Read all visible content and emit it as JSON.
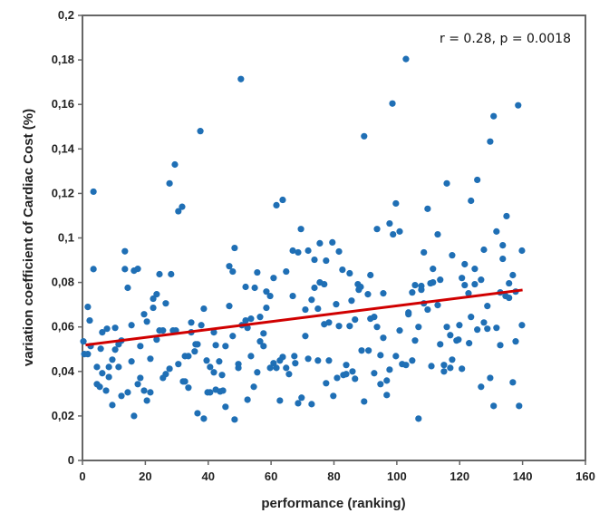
{
  "chart_data": {
    "type": "scatter",
    "title": "",
    "xlabel": "performance  (ranking)",
    "ylabel": "variation coefficient of Cardiac Cost (%)",
    "xlim": [
      0,
      160
    ],
    "ylim": [
      0,
      0.2
    ],
    "x_ticks": [
      0,
      20,
      40,
      60,
      80,
      100,
      120,
      140,
      160
    ],
    "x_tick_labels": [
      "0",
      "20",
      "40",
      "60",
      "80",
      "100",
      "120",
      "140",
      "160"
    ],
    "y_ticks": [
      0,
      0.02,
      0.04,
      0.06,
      0.08,
      0.1,
      0.12,
      0.14,
      0.16,
      0.18,
      0.2
    ],
    "y_tick_labels": [
      "0",
      "0,02",
      "0,04",
      "0,06",
      "0,08",
      "0,1",
      "0,12",
      "0,14",
      "0,16",
      "0,18",
      "0,2"
    ],
    "grid": false,
    "annotation": "r = 0.28, p = 0.0018",
    "colors": {
      "points": "#1f6fb5",
      "trendline": "#d00000",
      "axes": "#666666"
    },
    "trendline": {
      "x": [
        1,
        140
      ],
      "y": [
        0.0519,
        0.0766
      ]
    },
    "points": [
      [
        3.5,
        0.1208
      ],
      [
        29.4,
        0.133
      ],
      [
        27.7,
        0.1245
      ],
      [
        30.5,
        0.112
      ],
      [
        31.7,
        0.114
      ],
      [
        3.5,
        0.086
      ],
      [
        13.5,
        0.094
      ],
      [
        13.5,
        0.086
      ],
      [
        14.4,
        0.0776
      ],
      [
        16.4,
        0.0853
      ],
      [
        17.6,
        0.0861
      ],
      [
        24.5,
        0.0837
      ],
      [
        28.2,
        0.0837
      ],
      [
        23.6,
        0.0747
      ],
      [
        22.5,
        0.0727
      ],
      [
        22.5,
        0.0686
      ],
      [
        26.5,
        0.0706
      ],
      [
        19.6,
        0.0657
      ],
      [
        20.5,
        0.0624
      ],
      [
        1.7,
        0.069
      ],
      [
        2.3,
        0.0629
      ],
      [
        0.3,
        0.0535
      ],
      [
        2.6,
        0.0514
      ],
      [
        0.6,
        0.0478
      ],
      [
        1.7,
        0.0478
      ],
      [
        6.3,
        0.0576
      ],
      [
        7.8,
        0.0592
      ],
      [
        10.4,
        0.0596
      ],
      [
        15.6,
        0.0608
      ],
      [
        12.4,
        0.0539
      ],
      [
        11.5,
        0.0522
      ],
      [
        5.8,
        0.0502
      ],
      [
        10.4,
        0.0498
      ],
      [
        18.4,
        0.0514
      ],
      [
        23.6,
        0.0543
      ],
      [
        24.5,
        0.0584
      ],
      [
        25.6,
        0.0584
      ],
      [
        28.8,
        0.0584
      ],
      [
        29.7,
        0.0584
      ],
      [
        34.6,
        0.062
      ],
      [
        34.6,
        0.0576
      ],
      [
        37.8,
        0.0608
      ],
      [
        38.6,
        0.0682
      ],
      [
        36,
        0.0522
      ],
      [
        36.6,
        0.0522
      ],
      [
        35.7,
        0.049
      ],
      [
        32.6,
        0.0469
      ],
      [
        33.7,
        0.0469
      ],
      [
        30.5,
        0.0433
      ],
      [
        27.7,
        0.0412
      ],
      [
        26.5,
        0.0388
      ],
      [
        25.6,
        0.0371
      ],
      [
        21.6,
        0.0457
      ],
      [
        15.6,
        0.0445
      ],
      [
        9.5,
        0.0453
      ],
      [
        8.4,
        0.042
      ],
      [
        11.5,
        0.042
      ],
      [
        4.6,
        0.042
      ],
      [
        6.3,
        0.0392
      ],
      [
        8.4,
        0.0375
      ],
      [
        4.6,
        0.0343
      ],
      [
        5.5,
        0.0331
      ],
      [
        7.5,
        0.0314
      ],
      [
        9.5,
        0.0249
      ],
      [
        12.4,
        0.029
      ],
      [
        14.4,
        0.0306
      ],
      [
        16.4,
        0.02
      ],
      [
        18.4,
        0.0371
      ],
      [
        17.6,
        0.0343
      ],
      [
        19.6,
        0.0314
      ],
      [
        21.6,
        0.0306
      ],
      [
        20.5,
        0.0269
      ],
      [
        32,
        0.0355
      ],
      [
        32.6,
        0.0355
      ],
      [
        33.7,
        0.0327
      ],
      [
        36.6,
        0.0212
      ],
      [
        38.6,
        0.0188
      ],
      [
        39.5,
        0.0449
      ],
      [
        40.6,
        0.042
      ],
      [
        41.8,
        0.0396
      ],
      [
        42.4,
        0.0518
      ],
      [
        45.5,
        0.0514
      ],
      [
        41.8,
        0.0576
      ],
      [
        43.5,
        0.0445
      ],
      [
        44.4,
        0.0384
      ],
      [
        39.8,
        0.0306
      ],
      [
        40.6,
        0.0306
      ],
      [
        42.4,
        0.0318
      ],
      [
        43.8,
        0.031
      ],
      [
        44.7,
        0.0314
      ],
      [
        45.5,
        0.0241
      ],
      [
        48.4,
        0.0184
      ],
      [
        46.7,
        0.0694
      ],
      [
        46.7,
        0.0873
      ],
      [
        47.8,
        0.0849
      ],
      [
        48.4,
        0.0955
      ],
      [
        47.8,
        0.0559
      ],
      [
        49.6,
        0.0433
      ],
      [
        49.6,
        0.0416
      ],
      [
        50.7,
        0.0608
      ],
      [
        51.9,
        0.0629
      ],
      [
        52.5,
        0.0596
      ],
      [
        51.9,
        0.078
      ],
      [
        54.8,
        0.0776
      ],
      [
        53.6,
        0.0637
      ],
      [
        55.6,
        0.0845
      ],
      [
        53.6,
        0.0469
      ],
      [
        55.6,
        0.0396
      ],
      [
        54.5,
        0.0331
      ],
      [
        52.5,
        0.0273
      ],
      [
        56.5,
        0.0645
      ],
      [
        58.5,
        0.0759
      ],
      [
        59.7,
        0.0739
      ],
      [
        58.5,
        0.0686
      ],
      [
        57.6,
        0.0571
      ],
      [
        56.5,
        0.0535
      ],
      [
        57.6,
        0.0514
      ],
      [
        60.8,
        0.082
      ],
      [
        61.7,
        0.1147
      ],
      [
        63.7,
        0.1171
      ],
      [
        59.7,
        0.0416
      ],
      [
        60.8,
        0.0437
      ],
      [
        61.7,
        0.0416
      ],
      [
        62.8,
        0.0449
      ],
      [
        63.7,
        0.0465
      ],
      [
        64.8,
        0.0416
      ],
      [
        65.7,
        0.0388
      ],
      [
        62.8,
        0.0269
      ],
      [
        64.8,
        0.0849
      ],
      [
        66.9,
        0.0739
      ],
      [
        69.5,
        0.104
      ],
      [
        66.9,
        0.0943
      ],
      [
        68.6,
        0.0935
      ],
      [
        71.8,
        0.0943
      ],
      [
        75.5,
        0.0976
      ],
      [
        73.8,
        0.0902
      ],
      [
        77.5,
        0.0898
      ],
      [
        70.9,
        0.0678
      ],
      [
        70.9,
        0.0559
      ],
      [
        72.9,
        0.0722
      ],
      [
        74.9,
        0.0682
      ],
      [
        73.8,
        0.0776
      ],
      [
        75.5,
        0.08
      ],
      [
        76.9,
        0.0792
      ],
      [
        67.4,
        0.0469
      ],
      [
        67.7,
        0.0437
      ],
      [
        71.8,
        0.0457
      ],
      [
        74.9,
        0.0449
      ],
      [
        68.6,
        0.0257
      ],
      [
        69.7,
        0.0282
      ],
      [
        72.9,
        0.0253
      ],
      [
        77.5,
        0.0347
      ],
      [
        78.4,
        0.0449
      ],
      [
        76.9,
        0.0612
      ],
      [
        78.4,
        0.062
      ],
      [
        89.6,
        0.1457
      ],
      [
        129.7,
        0.1433
      ],
      [
        115.9,
        0.1245
      ],
      [
        125.6,
        0.1261
      ],
      [
        123.6,
        0.1167
      ],
      [
        99.7,
        0.1155
      ],
      [
        109.8,
        0.1131
      ],
      [
        134.9,
        0.1098
      ],
      [
        93.7,
        0.104
      ],
      [
        97.7,
        0.1065
      ],
      [
        98.8,
        0.1016
      ],
      [
        100.9,
        0.1029
      ],
      [
        113,
        0.1016
      ],
      [
        131.7,
        0.1029
      ],
      [
        79.5,
        0.098
      ],
      [
        81.6,
        0.0939
      ],
      [
        82.7,
        0.0857
      ],
      [
        85,
        0.0841
      ],
      [
        91.6,
        0.0833
      ],
      [
        87.6,
        0.0792
      ],
      [
        88.5,
        0.078
      ],
      [
        87.9,
        0.0767
      ],
      [
        90.8,
        0.0747
      ],
      [
        95.7,
        0.0751
      ],
      [
        85.6,
        0.0718
      ],
      [
        80.7,
        0.0702
      ],
      [
        108.6,
        0.0935
      ],
      [
        117.6,
        0.0922
      ],
      [
        127.7,
        0.0947
      ],
      [
        133.7,
        0.0967
      ],
      [
        133.7,
        0.0906
      ],
      [
        139.8,
        0.0943
      ],
      [
        111.5,
        0.0861
      ],
      [
        121.6,
        0.0882
      ],
      [
        124.8,
        0.0861
      ],
      [
        120.7,
        0.082
      ],
      [
        121.6,
        0.0788
      ],
      [
        124.8,
        0.0792
      ],
      [
        126.8,
        0.0812
      ],
      [
        136.9,
        0.0833
      ],
      [
        135.7,
        0.0796
      ],
      [
        105.8,
        0.0788
      ],
      [
        107.8,
        0.0784
      ],
      [
        107.8,
        0.0767
      ],
      [
        104.9,
        0.0755
      ],
      [
        110.7,
        0.0796
      ],
      [
        111.5,
        0.08
      ],
      [
        113.8,
        0.0812
      ],
      [
        122.8,
        0.0751
      ],
      [
        132.9,
        0.0755
      ],
      [
        134.6,
        0.0739
      ],
      [
        135.7,
        0.0731
      ],
      [
        137.8,
        0.0759
      ],
      [
        108.6,
        0.0706
      ],
      [
        109.8,
        0.0678
      ],
      [
        113,
        0.0698
      ],
      [
        103.7,
        0.0665
      ],
      [
        103.7,
        0.0657
      ],
      [
        128.8,
        0.0694
      ],
      [
        86.7,
        0.0633
      ],
      [
        91.6,
        0.0637
      ],
      [
        92.8,
        0.0645
      ],
      [
        81.6,
        0.0604
      ],
      [
        85,
        0.0604
      ],
      [
        93.7,
        0.06
      ],
      [
        100.9,
        0.0584
      ],
      [
        106.9,
        0.06
      ],
      [
        115.9,
        0.06
      ],
      [
        119.9,
        0.0608
      ],
      [
        123.6,
        0.0645
      ],
      [
        127.7,
        0.062
      ],
      [
        125.6,
        0.0588
      ],
      [
        128.8,
        0.0592
      ],
      [
        131.7,
        0.0596
      ],
      [
        139.8,
        0.0608
      ],
      [
        95.7,
        0.0551
      ],
      [
        105.8,
        0.0539
      ],
      [
        117,
        0.0563
      ],
      [
        119,
        0.0539
      ],
      [
        119.6,
        0.0543
      ],
      [
        123,
        0.0527
      ],
      [
        113.8,
        0.0522
      ],
      [
        132.9,
        0.0518
      ],
      [
        137.8,
        0.0535
      ],
      [
        88.8,
        0.0494
      ],
      [
        91,
        0.0494
      ],
      [
        94.8,
        0.0473
      ],
      [
        99.7,
        0.0469
      ],
      [
        104.9,
        0.0449
      ],
      [
        101.7,
        0.0433
      ],
      [
        102.9,
        0.0429
      ],
      [
        117.6,
        0.0453
      ],
      [
        111,
        0.0424
      ],
      [
        115,
        0.0429
      ],
      [
        115,
        0.04
      ],
      [
        117,
        0.0416
      ],
      [
        120.7,
        0.0412
      ],
      [
        83.9,
        0.0429
      ],
      [
        83,
        0.0384
      ],
      [
        83.9,
        0.0388
      ],
      [
        85.9,
        0.04
      ],
      [
        86.7,
        0.0367
      ],
      [
        81,
        0.0371
      ],
      [
        97.7,
        0.0408
      ],
      [
        92.8,
        0.0392
      ],
      [
        94.8,
        0.0343
      ],
      [
        96.8,
        0.0359
      ],
      [
        79.8,
        0.029
      ],
      [
        89.6,
        0.0265
      ],
      [
        96.8,
        0.0294
      ],
      [
        129.7,
        0.0371
      ],
      [
        126.8,
        0.0331
      ],
      [
        136.9,
        0.0351
      ],
      [
        130.8,
        0.0245
      ],
      [
        138.9,
        0.0245
      ],
      [
        106.9,
        0.0188
      ],
      [
        50.4,
        0.1714
      ],
      [
        37.5,
        0.148
      ],
      [
        102.9,
        0.1804
      ],
      [
        98.6,
        0.1604
      ],
      [
        130.8,
        0.1547
      ],
      [
        138.6,
        0.1596
      ]
    ]
  }
}
